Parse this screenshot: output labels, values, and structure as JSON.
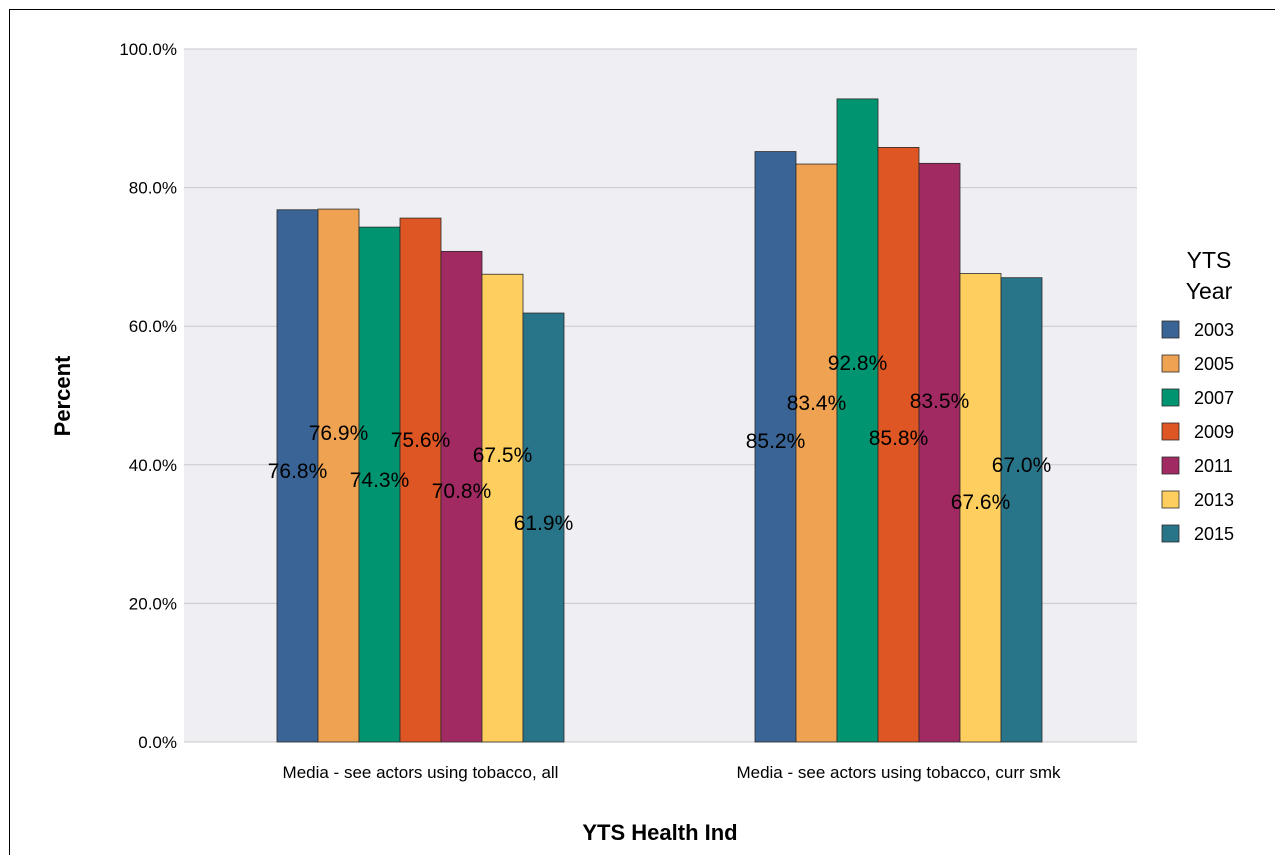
{
  "chart_data": {
    "type": "bar",
    "xlabel": "YTS Health Ind",
    "ylabel": "Percent",
    "ylim": [
      0,
      100
    ],
    "yticks": [
      "0.0%",
      "20.0%",
      "40.0%",
      "60.0%",
      "80.0%",
      "100.0%"
    ],
    "grid": true,
    "legend_position": "right",
    "legend_title": [
      "YTS",
      "Year"
    ],
    "categories": [
      "Media - see actors using tobacco, all",
      "Media - see actors using tobacco, curr smk"
    ],
    "series": [
      {
        "name": "2003",
        "color": "#3A6495",
        "values": [
          76.8,
          85.2
        ],
        "labels": [
          "76.8%",
          "85.2%"
        ]
      },
      {
        "name": "2005",
        "color": "#EFA352",
        "values": [
          76.9,
          83.4
        ],
        "labels": [
          "76.9%",
          "83.4%"
        ]
      },
      {
        "name": "2007",
        "color": "#019470",
        "values": [
          74.3,
          92.8
        ],
        "labels": [
          "74.3%",
          "92.8%"
        ]
      },
      {
        "name": "2009",
        "color": "#DD5623",
        "values": [
          75.6,
          85.8
        ],
        "labels": [
          "75.6%",
          "85.8%"
        ]
      },
      {
        "name": "2011",
        "color": "#A22A62",
        "values": [
          70.8,
          83.5
        ],
        "labels": [
          "70.8%",
          "83.5%"
        ]
      },
      {
        "name": "2013",
        "color": "#FECF5F",
        "values": [
          67.5,
          67.6
        ],
        "labels": [
          "67.5%",
          "67.6%"
        ]
      },
      {
        "name": "2015",
        "color": "#28758A",
        "values": [
          61.9,
          67.0
        ],
        "labels": [
          "61.9%",
          "67.0%"
        ]
      }
    ]
  }
}
